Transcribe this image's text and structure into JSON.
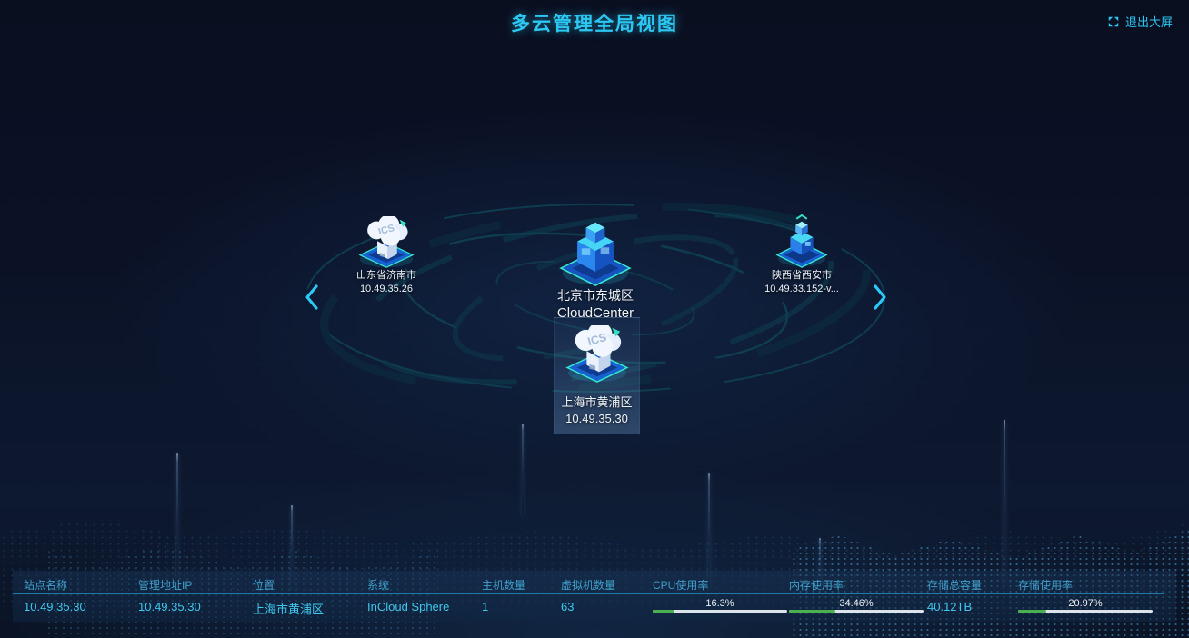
{
  "page": {
    "title": "多云管理全局视图",
    "exit_button": "退出大屏",
    "icons": {
      "exit": "exit-fullscreen-icon",
      "prev": "chevron-left-icon",
      "next": "chevron-right-icon"
    }
  },
  "orbit": {
    "center_node": {
      "name": "北京市东城区",
      "system": "CloudCenter"
    },
    "left_node": {
      "name": "山东省济南市",
      "ip": "10.49.35.26",
      "badge": "ICS"
    },
    "right_node": {
      "name": "陕西省西安市",
      "ip": "10.49.33.152-v..."
    },
    "selected_node": {
      "name": "上海市黄浦区",
      "ip": "10.49.35.30",
      "badge": "ICS"
    }
  },
  "table": {
    "columns": [
      "站点名称",
      "管理地址IP",
      "位置",
      "系统",
      "主机数量",
      "虚拟机数量",
      "CPU使用率",
      "内存使用率",
      "存储总容量",
      "存储使用率"
    ],
    "row": {
      "site_name": "10.49.35.30",
      "mgmt_ip": "10.49.35.30",
      "location": "上海市黄浦区",
      "system": "InCloud Sphere",
      "host_count": "1",
      "vm_count": "63",
      "cpu_label": "16.3%",
      "cpu_percent": 16.3,
      "mem_label": "34.46%",
      "mem_percent": 34.46,
      "storage_total": "40.12TB",
      "storage_label": "20.97%",
      "storage_percent": 20.97
    }
  },
  "colors": {
    "accent_cyan": "#2cc8f4",
    "progress_green": "#4caf50",
    "progress_track": "#dde3ea",
    "table_header_text": "#3f9fca",
    "table_value_text": "#3fc7ec"
  }
}
